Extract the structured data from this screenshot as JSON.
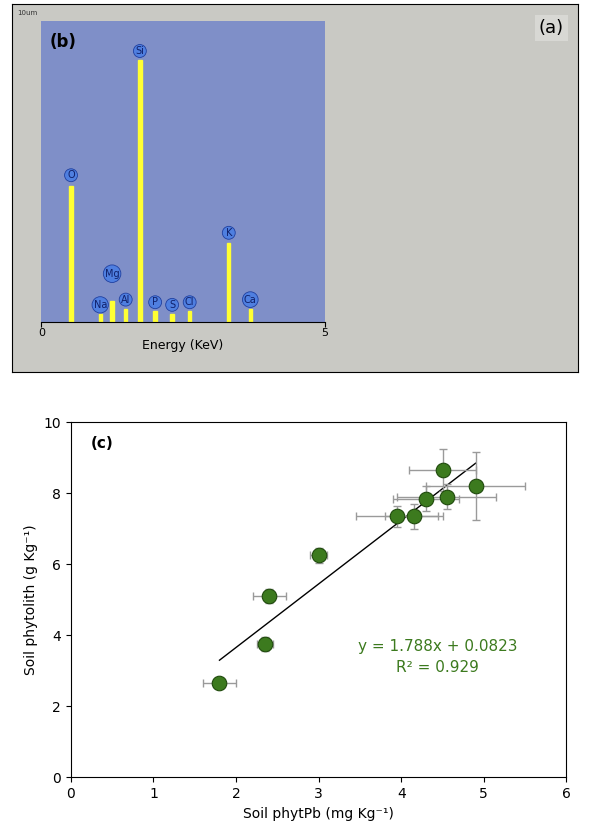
{
  "image": {
    "label": "(a)",
    "scale_bar": "10um"
  },
  "chart_data": [
    {
      "type": "bar",
      "label": "(b)",
      "x_label": "Energy (KeV)",
      "x": [
        0.525,
        1.04,
        1.25,
        1.49,
        1.74,
        2.01,
        2.31,
        2.62,
        3.31,
        3.69
      ],
      "values": [
        52,
        3,
        8,
        5,
        100,
        4,
        3,
        4,
        30,
        5
      ],
      "annotations": [
        "O",
        "Na",
        "Mg",
        "Al",
        "Si",
        "P",
        "S",
        "Cl",
        "K",
        "Ca"
      ],
      "color": "#ffff33",
      "xlim": [
        0,
        5
      ],
      "xticks": [
        0,
        5
      ],
      "ylim": [
        0,
        115
      ],
      "yticks": [],
      "tick_labels": "x"
    },
    {
      "type": "scatter",
      "label": "(c)",
      "x_label": "Soil phytPb (mg Kg⁻¹)",
      "y_label": "Soil phytolith (g Kg⁻¹)",
      "x": [
        1.8,
        2.35,
        2.4,
        3.0,
        3.95,
        4.15,
        4.3,
        4.5,
        4.55,
        4.9
      ],
      "values": [
        2.65,
        3.75,
        5.1,
        6.25,
        7.35,
        7.35,
        7.85,
        8.65,
        7.9,
        8.2
      ],
      "x_error": [
        0.2,
        0.1,
        0.2,
        0.1,
        0.5,
        0.35,
        0.4,
        0.4,
        0.6,
        0.6
      ],
      "y_error": [
        0.1,
        0.2,
        0.2,
        0.2,
        0.3,
        0.35,
        0.35,
        0.6,
        0.35,
        0.95
      ],
      "trendline": {
        "slope": 1.788,
        "intercept": 0.0823
      },
      "annotations": [
        "y = 1.788x + 0.0823",
        "R² = 0.929"
      ],
      "color": "#3c7a1e",
      "marker": "o",
      "xlim": [
        0,
        6
      ],
      "xticks": [
        0,
        1,
        2,
        3,
        4,
        5,
        6
      ],
      "ylim": [
        0,
        10
      ],
      "yticks": [
        0,
        2,
        4,
        6,
        8,
        10
      ],
      "grid": false
    }
  ]
}
